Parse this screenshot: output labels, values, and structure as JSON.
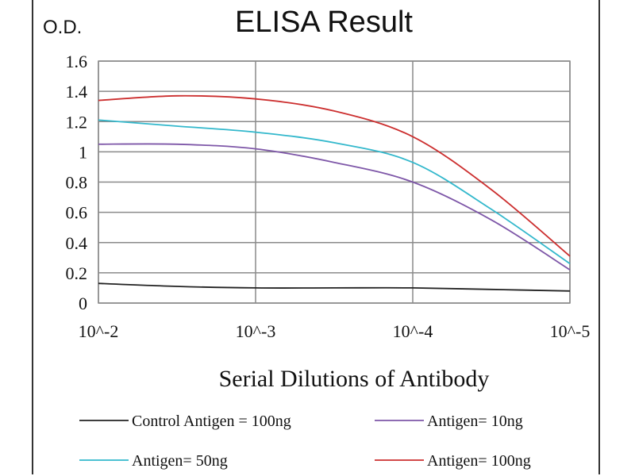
{
  "chart_data": {
    "type": "line",
    "title": "ELISA Result",
    "ylabel": "O.D.",
    "xlabel": "Serial Dilutions  of Antibody",
    "categories": [
      "10^-2",
      "10^-3",
      "10^-4",
      "10^-5"
    ],
    "ylim": [
      0,
      1.6
    ],
    "yticks": [
      "0",
      "0.2",
      "0.4",
      "0.6",
      "0.8",
      "1",
      "1.2",
      "1.4",
      "1.6"
    ],
    "grid": true,
    "legend_position": "bottom",
    "series": [
      {
        "name": "Control Antigen = 100ng",
        "color": "#222222",
        "x": [
          0,
          0.5,
          1,
          1.5,
          2,
          2.5,
          3
        ],
        "y": [
          0.13,
          0.11,
          0.1,
          0.1,
          0.1,
          0.09,
          0.08
        ]
      },
      {
        "name": "Antigen= 10ng",
        "color": "#7e57a8",
        "x": [
          0,
          0.5,
          1,
          1.5,
          2,
          2.5,
          3
        ],
        "y": [
          1.05,
          1.05,
          1.02,
          0.93,
          0.8,
          0.55,
          0.22
        ]
      },
      {
        "name": "Antigen= 50ng",
        "color": "#33b8cc",
        "x": [
          0,
          0.5,
          1,
          1.5,
          2,
          2.5,
          3
        ],
        "y": [
          1.21,
          1.17,
          1.13,
          1.06,
          0.93,
          0.62,
          0.26
        ]
      },
      {
        "name": "Antigen= 100ng",
        "color": "#cc2f2f",
        "x": [
          0,
          0.5,
          1,
          1.5,
          2,
          2.5,
          3
        ],
        "y": [
          1.34,
          1.37,
          1.35,
          1.27,
          1.1,
          0.75,
          0.31
        ]
      }
    ]
  }
}
